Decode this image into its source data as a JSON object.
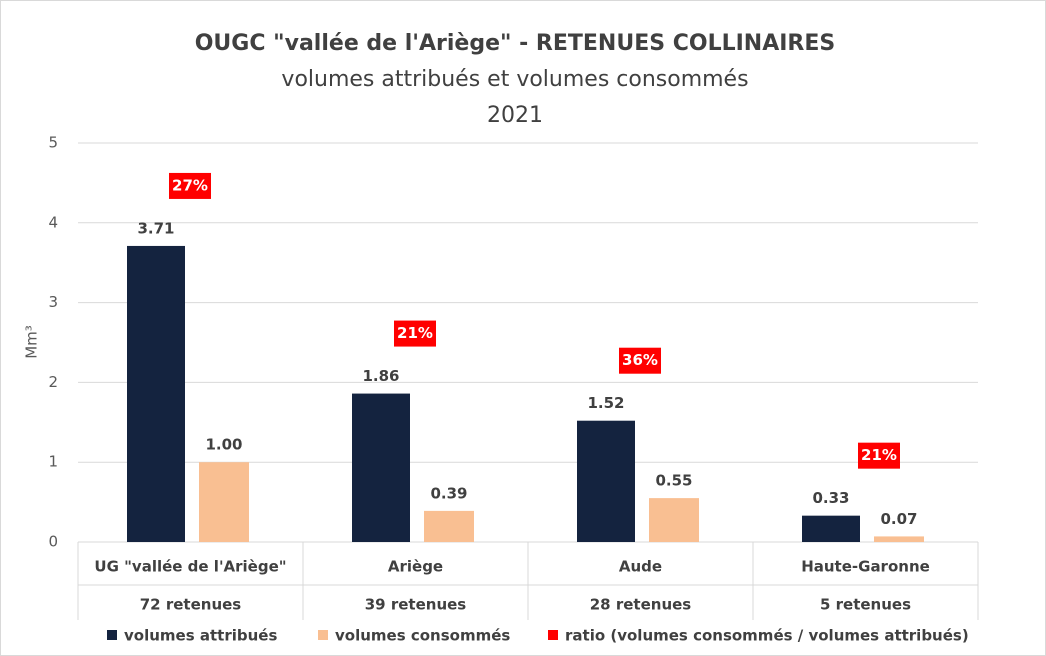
{
  "chart_data": {
    "type": "bar",
    "title": "OUGC \"vallée de l'Ariège\" - RETENUES COLLINAIRES",
    "subtitle": "volumes attribués et volumes consommés",
    "year": "2021",
    "y_label": "Mm³",
    "categories": [
      "UG \"vallée de l'Ariège\"",
      "Ariège",
      "Aude",
      "Haute-Garonne"
    ],
    "subcategories": [
      "72 retenues",
      "39 retenues",
      "28 retenues",
      "5 retenues"
    ],
    "ylim": [
      0,
      5
    ],
    "yticks": [
      0,
      1,
      2,
      3,
      4,
      5
    ],
    "grid": true,
    "series": [
      {
        "name": "volumes attribués",
        "color": "#14233f",
        "values": [
          3.71,
          1.86,
          1.52,
          0.33
        ],
        "value_labels": [
          "3.71",
          "1.86",
          "1.52",
          "0.33"
        ]
      },
      {
        "name": "volumes consommés",
        "color": "#f9bf92",
        "values": [
          1.0,
          0.39,
          0.55,
          0.07
        ],
        "value_labels": [
          "1.00",
          "0.39",
          "0.55",
          "0.07"
        ]
      },
      {
        "name": "ratio (volumes consommés / volumes attribués)",
        "color": "#ff0000",
        "values": [
          27,
          21,
          36,
          21
        ],
        "value_labels": [
          "27%",
          "21%",
          "36%",
          "21%"
        ]
      }
    ]
  }
}
